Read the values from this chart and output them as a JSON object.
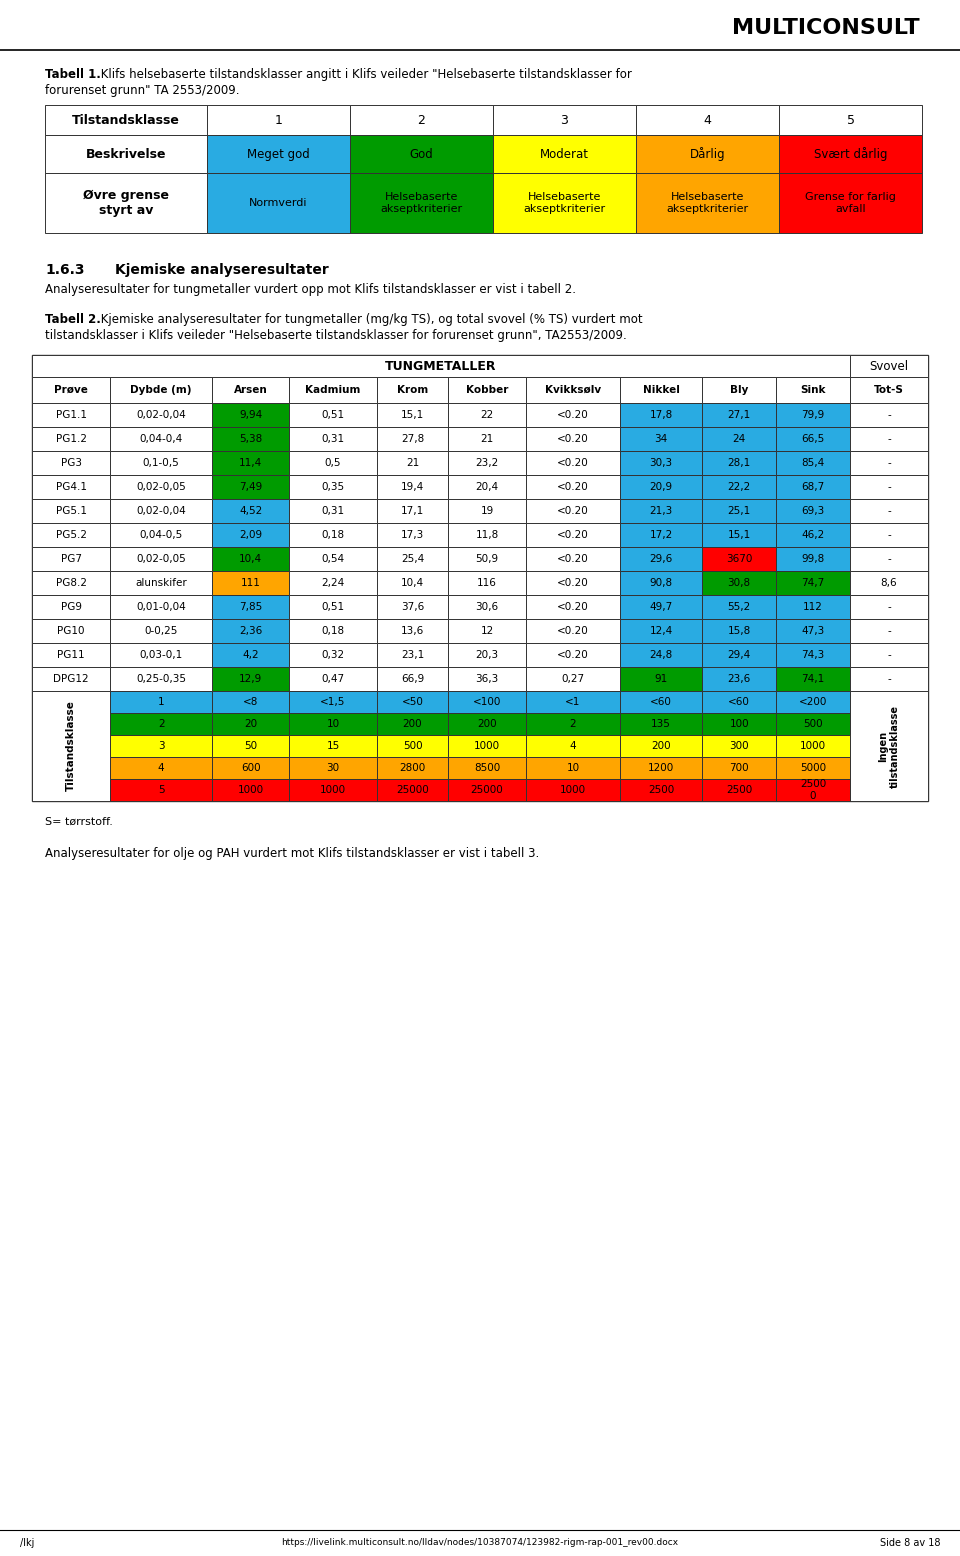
{
  "title_text": "MULTICONSULT",
  "tabell1_caption_bold": "Tabell 1.",
  "tabell1_caption_rest": " Klifs helsebaserte tilstandsklasser angitt i Klifs veileder \"Helsebaserte tilstandsklasser for",
  "tabell1_caption_line2": "forurenset grunn\" TA 2553/2009.",
  "tabell1_headers": [
    "Tilstandsklasse",
    "1",
    "2",
    "3",
    "4",
    "5"
  ],
  "tabell1_row1_label": "Beskrivelse",
  "tabell1_row1_vals": [
    "Meget god",
    "God",
    "Moderat",
    "Dårlig",
    "Svært dårlig"
  ],
  "tabell1_row2_label": "Øvre grense\nstyrt av",
  "tabell1_row2_vals": [
    "Normverdi",
    "Helsebaserte\nakseptkriterier",
    "Helsebaserte\nakseptkriterier",
    "Helsebaserte\nakseptkriterier",
    "Grense for farlig\navfall"
  ],
  "class_colors": [
    "#29ABE2",
    "#009B00",
    "#FFFF00",
    "#FFA500",
    "#FF0000"
  ],
  "section_num": "1.6.3",
  "section_title": "Kjemiske analyseresultater",
  "section_text": "Analyseresultater for tungmetaller vurdert opp mot Klifs tilstandsklasser er vist i tabell 2.",
  "tabell2_caption_bold": "Tabell 2.",
  "tabell2_caption_rest": " Kjemiske analyseresultater for tungmetaller (mg/kg TS), og total svovel (% TS) vurdert mot",
  "tabell2_caption_line2": "tilstandsklasser i Klifs veileder \"Helsebaserte tilstandsklasser for forurenset grunn\", TA2553/2009.",
  "tabell2_headers": [
    "Prøve",
    "Dybde (m)",
    "Arsen",
    "Kadmium",
    "Krom",
    "Kobber",
    "Kvikksølv",
    "Nikkel",
    "Bly",
    "Sink",
    "Tot-S"
  ],
  "tabell2_subheader_tungmetaller": "TUNGMETALLER",
  "tabell2_subheader_svovel": "Svovel",
  "tabell2_data": [
    [
      "PG1.1",
      "0,02-0,04",
      "9,94",
      "0,51",
      "15,1",
      "22",
      "<0.20",
      "17,8",
      "27,1",
      "79,9",
      "-"
    ],
    [
      "PG1.2",
      "0,04-0,4",
      "5,38",
      "0,31",
      "27,8",
      "21",
      "<0.20",
      "34",
      "24",
      "66,5",
      "-"
    ],
    [
      "PG3",
      "0,1-0,5",
      "11,4",
      "0,5",
      "21",
      "23,2",
      "<0.20",
      "30,3",
      "28,1",
      "85,4",
      "-"
    ],
    [
      "PG4.1",
      "0,02-0,05",
      "7,49",
      "0,35",
      "19,4",
      "20,4",
      "<0.20",
      "20,9",
      "22,2",
      "68,7",
      "-"
    ],
    [
      "PG5.1",
      "0,02-0,04",
      "4,52",
      "0,31",
      "17,1",
      "19",
      "<0.20",
      "21,3",
      "25,1",
      "69,3",
      "-"
    ],
    [
      "PG5.2",
      "0,04-0,5",
      "2,09",
      "0,18",
      "17,3",
      "11,8",
      "<0.20",
      "17,2",
      "15,1",
      "46,2",
      "-"
    ],
    [
      "PG7",
      "0,02-0,05",
      "10,4",
      "0,54",
      "25,4",
      "50,9",
      "<0.20",
      "29,6",
      "3670",
      "99,8",
      "-"
    ],
    [
      "PG8.2",
      "alunskifer",
      "111",
      "2,24",
      "10,4",
      "116",
      "<0.20",
      "90,8",
      "30,8",
      "74,7",
      "8,6"
    ],
    [
      "PG9",
      "0,01-0,04",
      "7,85",
      "0,51",
      "37,6",
      "30,6",
      "<0.20",
      "49,7",
      "55,2",
      "112",
      "-"
    ],
    [
      "PG10",
      "0-0,25",
      "2,36",
      "0,18",
      "13,6",
      "12",
      "<0.20",
      "12,4",
      "15,8",
      "47,3",
      "-"
    ],
    [
      "PG11",
      "0,03-0,1",
      "4,2",
      "0,32",
      "23,1",
      "20,3",
      "<0.20",
      "24,8",
      "29,4",
      "74,3",
      "-"
    ],
    [
      "DPG12",
      "0,25-0,35",
      "12,9",
      "0,47",
      "66,9",
      "36,3",
      "0,27",
      "91",
      "23,6",
      "74,1",
      "-"
    ]
  ],
  "tabell2_cell_colors": {
    "0,2": "#009B00",
    "1,2": "#009B00",
    "2,2": "#009B00",
    "3,2": "#009B00",
    "4,2": "#29ABE2",
    "5,2": "#29ABE2",
    "6,2": "#009B00",
    "7,2": "#FFA500",
    "8,2": "#29ABE2",
    "9,2": "#29ABE2",
    "10,2": "#29ABE2",
    "11,2": "#009B00",
    "0,7": "#29ABE2",
    "1,7": "#29ABE2",
    "2,7": "#29ABE2",
    "3,7": "#29ABE2",
    "4,7": "#29ABE2",
    "5,7": "#29ABE2",
    "6,7": "#29ABE2",
    "7,7": "#29ABE2",
    "8,7": "#29ABE2",
    "9,7": "#29ABE2",
    "10,7": "#29ABE2",
    "11,7": "#009B00",
    "0,8": "#29ABE2",
    "1,8": "#29ABE2",
    "2,8": "#29ABE2",
    "3,8": "#29ABE2",
    "4,8": "#29ABE2",
    "5,8": "#29ABE2",
    "6,8": "#FF0000",
    "7,8": "#009B00",
    "8,8": "#29ABE2",
    "9,8": "#29ABE2",
    "10,8": "#29ABE2",
    "11,8": "#29ABE2",
    "0,9": "#29ABE2",
    "1,9": "#29ABE2",
    "2,9": "#29ABE2",
    "3,9": "#29ABE2",
    "4,9": "#29ABE2",
    "5,9": "#29ABE2",
    "6,9": "#29ABE2",
    "7,9": "#009B00",
    "8,9": "#29ABE2",
    "9,9": "#29ABE2",
    "10,9": "#29ABE2",
    "11,9": "#009B00"
  },
  "tilstandsklasse_rows": [
    [
      "1",
      "<8",
      "<1,5",
      "<50",
      "<100",
      "<1",
      "<60",
      "<60",
      "<200"
    ],
    [
      "2",
      "20",
      "10",
      "200",
      "200",
      "2",
      "135",
      "100",
      "500"
    ],
    [
      "3",
      "50",
      "15",
      "500",
      "1000",
      "4",
      "200",
      "300",
      "1000"
    ],
    [
      "4",
      "600",
      "30",
      "2800",
      "8500",
      "10",
      "1200",
      "700",
      "5000"
    ],
    [
      "5",
      "1000",
      "1000",
      "25000",
      "25000",
      "1000",
      "2500",
      "2500",
      "2500\n0"
    ]
  ],
  "tilstandsklasse_colors": [
    "#29ABE2",
    "#009B00",
    "#FFFF00",
    "#FFA500",
    "#FF0000"
  ],
  "footnote": "S= tørrstoff.",
  "closing_text": "Analyseresultater for olje og PAH vurdert mot Klifs tilstandsklasser er vist i tabell 3.",
  "footer_left": "/lkj",
  "footer_right": "Side 8 av 18",
  "footer_url": "https://livelink.multiconsult.no/lldav/nodes/10387074/123982-rigm-rap-001_rev00.docx"
}
